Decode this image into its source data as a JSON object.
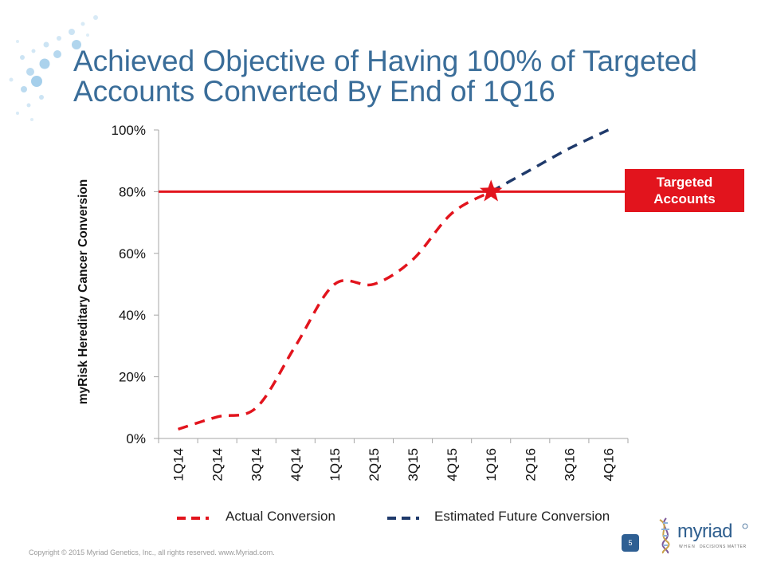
{
  "slide": {
    "title_line1": "Achieved Objective of Having 100% of Targeted",
    "title_line2": "Accounts Converted By End of 1Q16",
    "footer": "Copyright © 2015 Myriad Genetics, Inc., all rights reserved.  www.Myriad.com.",
    "page_number": "5",
    "logo_text": "myriad",
    "logo_tagline_when": "WHEN",
    "logo_tagline_matter": "DECISIONS MATTER"
  },
  "callout": {
    "line1": "Targeted",
    "line2": "Accounts"
  },
  "legend": {
    "actual": "Actual Conversion",
    "estimated": "Estimated Future Conversion"
  },
  "colors": {
    "title": "#3a6d99",
    "actual": "#e2141d",
    "estimated": "#1f3a6b",
    "target": "#e2141d"
  },
  "chart_data": {
    "type": "line",
    "ylabel": "myRisk Hereditary Cancer Conversion",
    "xlabel": "",
    "categories": [
      "1Q14",
      "2Q14",
      "3Q14",
      "4Q14",
      "1Q15",
      "2Q15",
      "3Q15",
      "4Q15",
      "1Q16",
      "2Q16",
      "3Q16",
      "4Q16"
    ],
    "ylim": [
      0,
      100
    ],
    "yticks": [
      0,
      20,
      40,
      60,
      80,
      100
    ],
    "ytick_labels": [
      "0%",
      "20%",
      "40%",
      "60%",
      "80%",
      "100%"
    ],
    "series": [
      {
        "name": "Actual Conversion",
        "style": "dashed",
        "values": [
          3,
          7,
          10,
          30,
          50,
          50,
          58,
          73,
          80,
          null,
          null,
          null
        ]
      },
      {
        "name": "Estimated Future Conversion",
        "style": "dashed",
        "values": [
          null,
          null,
          null,
          null,
          null,
          null,
          null,
          null,
          80,
          87,
          94,
          100
        ]
      }
    ],
    "reference_line": {
      "label": "Targeted Accounts",
      "value": 80
    },
    "marker": {
      "category": "1Q16",
      "value": 80,
      "shape": "star"
    },
    "grid": false,
    "legend_position": "bottom"
  }
}
